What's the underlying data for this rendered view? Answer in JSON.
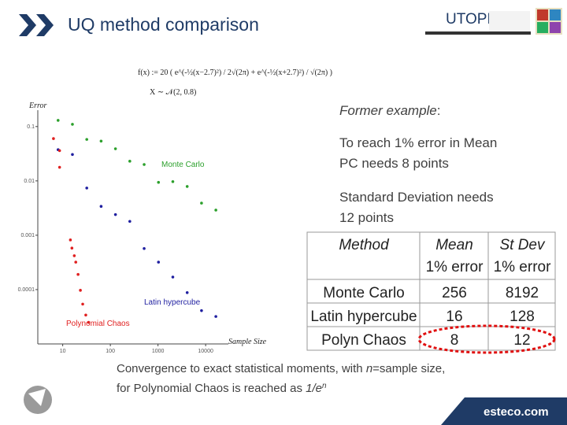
{
  "header": {
    "title": "UQ method comparison",
    "logo": "UTOPIÆ"
  },
  "formula": {
    "lines": [
      "f(x) := 20 ( e^(-½(x−2.7)²) / 2√(2π) + e^(-½(x+2.7)²) / √(2π) )",
      "X ∼ 𝒩(2, 0.8)"
    ]
  },
  "chart_data": {
    "type": "scatter",
    "x_label": "Sample Size",
    "y_label": "Error",
    "xscale": "log",
    "yscale": "log",
    "xlim": [
      3,
      30000
    ],
    "ylim": [
      1e-05,
      0.2
    ],
    "xticks": [
      10,
      100,
      1000,
      10000
    ],
    "yticks": [
      0.1,
      0.01,
      0.001,
      0.0001
    ],
    "series": [
      {
        "name": "Monte Carlo",
        "color": "#2ca02c",
        "x": [
          8,
          16,
          32,
          64,
          128,
          256,
          512,
          1024,
          2048,
          4096,
          8192,
          16384
        ],
        "values": [
          0.13,
          0.11,
          0.058,
          0.054,
          0.039,
          0.023,
          0.02,
          0.0094,
          0.0097,
          0.0079,
          0.0039,
          0.0029
        ]
      },
      {
        "name": "Latin hypercube",
        "color": "#1f1fa0",
        "x": [
          8,
          16,
          32,
          64,
          128,
          256,
          512,
          1024,
          2048,
          4096,
          8192,
          16384
        ],
        "values": [
          0.0375,
          0.0306,
          0.0074,
          0.0034,
          0.0024,
          0.0018,
          0.00057,
          0.00032,
          0.00017,
          8.8e-05,
          4.1e-05,
          3.2e-05
        ]
      },
      {
        "name": "Polynomial Chaos",
        "color": "#e02020",
        "x": [
          6.4,
          8.6,
          8.6,
          14.5,
          15.6,
          17.5,
          18.8,
          21,
          23.5,
          26.3,
          30.5,
          35
        ],
        "values": [
          0.06,
          0.036,
          0.0178,
          0.00082,
          0.00058,
          0.00042,
          0.00032,
          0.00019,
          9.7e-05,
          5.4e-05,
          3.4e-05,
          2.5e-05
        ]
      }
    ]
  },
  "notes": [
    [
      {
        "text": "Former example",
        "italic": true
      },
      {
        "text": ":"
      }
    ],
    [
      {
        "text": "To reach 1% error in Mean"
      }
    ],
    [
      {
        "text": "PC needs 8 points"
      }
    ],
    [
      {
        "text": "Standard Deviation needs"
      }
    ],
    [
      {
        "text": "12 points"
      }
    ]
  ],
  "table": {
    "header": [
      [
        "Method"
      ],
      [
        "Mean",
        "1% error"
      ],
      [
        "St Dev",
        "1% error"
      ]
    ],
    "rows": [
      [
        "Monte Carlo",
        "256",
        "8192"
      ],
      [
        "Latin hypercube",
        "16",
        "128"
      ],
      [
        "Polyn Chaos",
        "8",
        "12"
      ]
    ]
  },
  "footer": {
    "lines": [
      [
        {
          "text": "Convergence to exact statistical moments, with "
        },
        {
          "text": "n",
          "italic": true
        },
        {
          "text": "=sample size,"
        }
      ],
      [
        {
          "text": "for Polynomial Chaos is reached as "
        },
        {
          "text": "1/e",
          "italic": true
        },
        {
          "text": "n",
          "italic": true,
          "sup": true
        }
      ]
    ],
    "brand": "esteco.com"
  }
}
